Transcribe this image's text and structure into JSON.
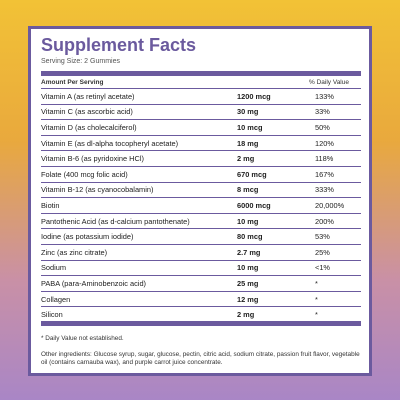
{
  "panel": {
    "title": "Supplement Facts",
    "serving_size": "Serving Size: 2 Gummies",
    "header": {
      "amount_per_serving": "Amount Per Serving",
      "daily_value": "% Daily Value"
    },
    "rows": [
      {
        "name": "Vitamin A (as retinyl acetate)",
        "amount": "1200 mcg",
        "dv": "133%"
      },
      {
        "name": "Vitamin C (as ascorbic acid)",
        "amount": "30 mg",
        "dv": "33%"
      },
      {
        "name": "Vitamin D (as cholecalciferol)",
        "amount": "10 mcg",
        "dv": "50%"
      },
      {
        "name": "Vitamin E (as dl-alpha tocopheryl acetate)",
        "amount": "18 mg",
        "dv": "120%"
      },
      {
        "name": "Vitamin B-6 (as pyridoxine HCl)",
        "amount": "2 mg",
        "dv": "118%"
      },
      {
        "name": "Folate (400 mcg folic acid)",
        "amount": "670 mcg",
        "dv": "167%"
      },
      {
        "name": "Vitamin B-12 (as cyanocobalamin)",
        "amount": "8 mcg",
        "dv": "333%"
      },
      {
        "name": "Biotin",
        "amount": "6000 mcg",
        "dv": "20,000%"
      },
      {
        "name": "Pantothenic Acid (as d-calcium pantothenate)",
        "amount": "10 mg",
        "dv": "200%"
      },
      {
        "name": "Iodine (as potassium iodide)",
        "amount": "80 mcg",
        "dv": "53%"
      },
      {
        "name": "Zinc (as zinc citrate)",
        "amount": "2.7 mg",
        "dv": "25%"
      },
      {
        "name": "Sodium",
        "amount": "10 mg",
        "dv": "<1%"
      },
      {
        "name": "PABA (para-Aminobenzoic acid)",
        "amount": "25 mg",
        "dv": "*"
      },
      {
        "name": "Collagen",
        "amount": "12 mg",
        "dv": "*"
      },
      {
        "name": "Silicon",
        "amount": "2 mg",
        "dv": "*"
      }
    ],
    "footnote": "* Daily Value not established.",
    "ingredients": "Other ingredients: Glucose syrup, sugar, glucose, pectin, citric acid, sodium citrate, passion fruit flavor, vegetable oil (contains carnauba wax), and purple carrot juice concentrate."
  }
}
